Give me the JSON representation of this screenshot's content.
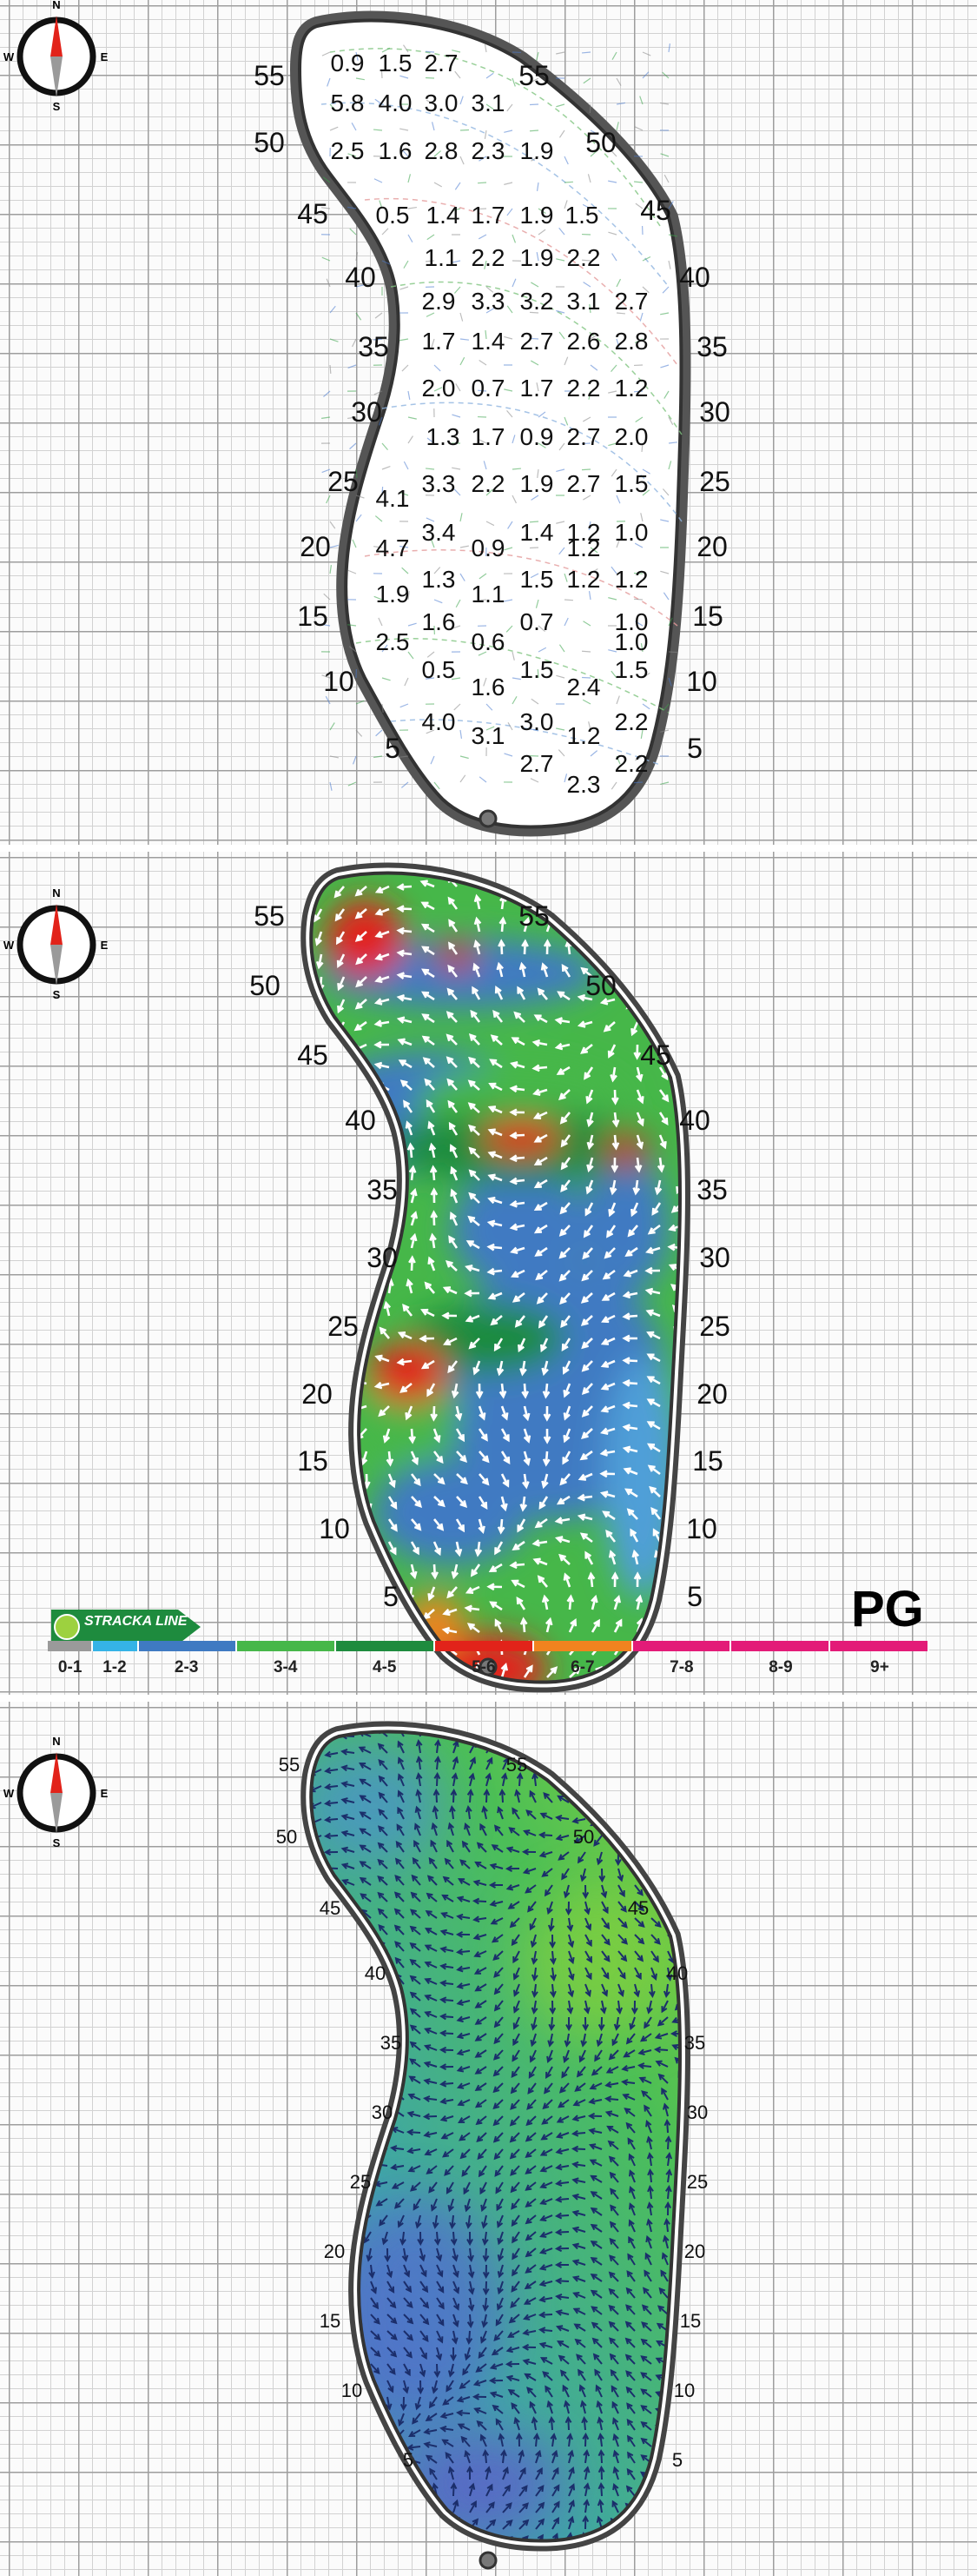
{
  "panel1": {
    "left_numbers": [
      "55",
      "50",
      "45",
      "40",
      "35",
      "30",
      "25",
      "20",
      "15",
      "10",
      "5"
    ],
    "right_numbers": [
      "55",
      "50",
      "45",
      "40",
      "35",
      "30",
      "25",
      "20",
      "15",
      "10",
      "5"
    ],
    "slopes": [
      [
        "0.9",
        "1.5",
        "2.7"
      ],
      [
        "5.8",
        "4.0",
        "3.0",
        "3.1"
      ],
      [
        "2.5",
        "1.6",
        "2.8",
        "2.3",
        "1.9"
      ],
      [
        "0.5",
        "1.4",
        "1.7",
        "1.9",
        "1.5"
      ],
      [
        "1.1",
        "2.2",
        "1.9",
        "2.2"
      ],
      [
        "2.9",
        "3.3",
        "3.2",
        "3.1",
        "2.7"
      ],
      [
        "1.7",
        "1.4",
        "2.7",
        "2.6",
        "2.8"
      ],
      [
        "2.0",
        "0.7",
        "1.7",
        "2.2",
        "1.2"
      ],
      [
        "1.3",
        "1.7",
        "0.9",
        "2.7",
        "2.0"
      ],
      [
        "3.3",
        "2.2",
        "1.9",
        "2.7",
        "1.5"
      ],
      [
        "4.1"
      ],
      [
        "3.4",
        "1.4",
        "1.2",
        "1.0"
      ],
      [
        "4.7",
        "0.9",
        "1.2"
      ],
      [
        "1.3",
        "1.5",
        "1.2",
        "1.2"
      ],
      [
        "1.9",
        "1.1"
      ],
      [
        "1.6",
        "0.7",
        "1.0"
      ],
      [
        "2.5",
        "0.6",
        "1.0"
      ],
      [
        "0.5",
        "1.5",
        "1.5"
      ],
      [
        "1.6",
        "2.4"
      ],
      [
        "4.0",
        "3.0",
        "2.2"
      ],
      [
        "3.1",
        "1.2"
      ],
      [
        "2.7",
        "2.2"
      ],
      [
        "2.3"
      ]
    ]
  },
  "panel2": {
    "left_numbers": [
      "55",
      "50",
      "45",
      "40",
      "35",
      "30",
      "25",
      "20",
      "15",
      "10",
      "5"
    ],
    "right_numbers": [
      "55",
      "50",
      "45",
      "40",
      "35",
      "30",
      "25",
      "20",
      "15",
      "10",
      "5"
    ],
    "legend": {
      "code": "PG",
      "brand": "STRACKA LINE",
      "ranges": [
        "0-1",
        "1-2",
        "2-3",
        "3-4",
        "4-5",
        "5-6",
        "6-7",
        "7-8",
        "8-9",
        "9+"
      ],
      "colors": [
        "#9a9a9a",
        "#35b3e6",
        "#3f7ac2",
        "#46b749",
        "#1e8b3e",
        "#e2231a",
        "#f1831f",
        "#e31b78",
        "#e31b78",
        "#e31b78"
      ]
    }
  },
  "panel3": {
    "left_numbers": [
      "55",
      "50",
      "45",
      "40",
      "35",
      "30",
      "25",
      "20",
      "15",
      "10",
      "5"
    ],
    "right_numbers": [
      "55",
      "50",
      "45",
      "40",
      "35",
      "30",
      "25",
      "20",
      "15",
      "10",
      "5"
    ]
  },
  "compass": {
    "n": "N",
    "s": "S",
    "e": "E",
    "w": "W"
  }
}
